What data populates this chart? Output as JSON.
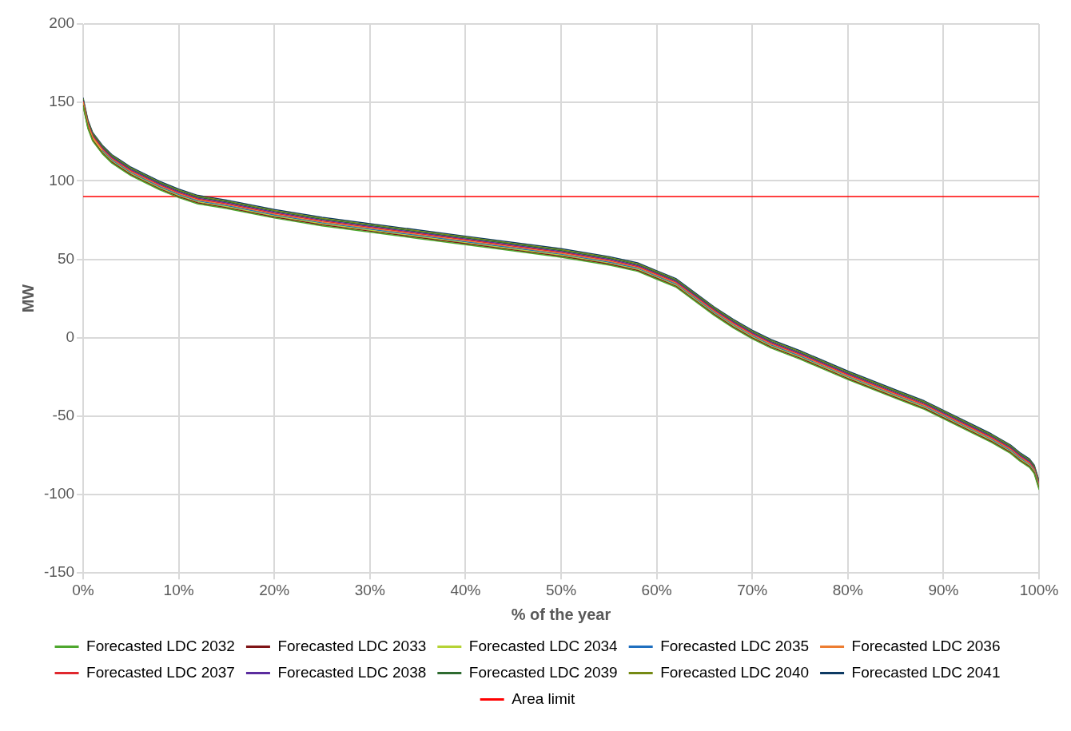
{
  "chart_data": {
    "type": "line",
    "xlabel": "% of the year",
    "ylabel": "MW",
    "x": [
      0,
      0.5,
      1,
      2,
      3,
      4,
      5,
      6,
      8,
      10,
      12,
      15,
      20,
      25,
      30,
      35,
      40,
      45,
      50,
      55,
      58,
      60,
      62,
      64,
      66,
      68,
      70,
      72,
      75,
      80,
      85,
      88,
      90,
      93,
      95,
      97,
      98,
      99,
      99.5,
      100
    ],
    "series": [
      {
        "name": "Forecasted LDC 2032",
        "color": "#4ea72e",
        "values": [
          147.3,
          133.3,
          125.3,
          117.3,
          111.3,
          107.3,
          103.3,
          100.3,
          94.3,
          89.3,
          85.3,
          82.3,
          76.3,
          71.3,
          67.3,
          63.3,
          59.3,
          55.3,
          51.3,
          46.3,
          42.3,
          37.3,
          32.3,
          23.3,
          14.3,
          6.3,
          -0.7,
          -6.7,
          -13.7,
          -26.7,
          -38.7,
          -45.7,
          -51.7,
          -60.7,
          -66.7,
          -73.7,
          -78.7,
          -82.7,
          -86.7,
          -96.7
        ]
      },
      {
        "name": "Forecasted LDC 2033",
        "color": "#7f1416",
        "values": [
          147.9,
          133.9,
          125.9,
          117.9,
          111.9,
          107.9,
          103.9,
          100.9,
          94.9,
          89.9,
          85.9,
          82.9,
          76.9,
          71.9,
          67.9,
          63.9,
          59.9,
          55.9,
          51.9,
          46.9,
          42.9,
          37.9,
          32.9,
          23.9,
          14.9,
          6.9,
          -0.1,
          -6.1,
          -13.1,
          -26.1,
          -38.1,
          -45.1,
          -51.1,
          -60.1,
          -66.1,
          -73.1,
          -78.1,
          -82.1,
          -86.1,
          -96.1
        ]
      },
      {
        "name": "Forecasted LDC 2034",
        "color": "#b5d335",
        "values": [
          148.5,
          134.5,
          126.5,
          118.5,
          112.5,
          108.5,
          104.5,
          101.5,
          95.5,
          90.5,
          86.5,
          83.5,
          77.5,
          72.5,
          68.5,
          64.5,
          60.5,
          56.5,
          52.5,
          47.5,
          43.5,
          38.5,
          33.5,
          24.5,
          15.5,
          7.5,
          0.5,
          -5.5,
          -12.5,
          -25.5,
          -37.5,
          -44.5,
          -50.5,
          -59.5,
          -65.5,
          -72.5,
          -77.5,
          -81.5,
          -85.5,
          -95.5
        ]
      },
      {
        "name": "Forecasted LDC 2035",
        "color": "#1f6fbf",
        "values": [
          null,
          null,
          null,
          119.1,
          113.1,
          109.1,
          105.1,
          102.1,
          96.1,
          91.1,
          87.1,
          84.1,
          78.1,
          73.1,
          69.1,
          65.1,
          61.1,
          57.1,
          53.1,
          48.1,
          44.1,
          39.1,
          34.1,
          25.1,
          16.1,
          8.1,
          1.1,
          -4.9,
          -11.9,
          -24.9,
          -36.9,
          -43.9,
          -49.9,
          -58.9,
          -64.9,
          -71.9,
          -76.9,
          -80.9,
          -84.9,
          -94.9
        ]
      },
      {
        "name": "Forecasted LDC 2036",
        "color": "#ed7d31",
        "values": [
          149.7,
          135.7,
          127.7,
          119.7,
          113.7,
          109.7,
          105.7,
          102.7,
          96.7,
          91.7,
          87.7,
          84.7,
          78.7,
          73.7,
          69.7,
          65.7,
          61.7,
          57.7,
          53.7,
          48.7,
          44.7,
          39.7,
          34.7,
          25.7,
          16.7,
          8.7,
          1.7,
          -4.3,
          -11.3,
          -24.3,
          -36.3,
          -43.3,
          -49.3,
          -58.3,
          -64.3,
          -71.3,
          -76.3,
          -80.3,
          -84.3,
          -94.3
        ]
      },
      {
        "name": "Forecasted LDC 2037",
        "color": "#e0282e",
        "values": [
          150.3,
          136.3,
          128.3,
          120.3,
          114.3,
          110.3,
          106.3,
          103.3,
          97.3,
          92.3,
          88.3,
          85.3,
          79.3,
          74.3,
          70.3,
          66.3,
          62.3,
          58.3,
          54.3,
          49.3,
          45.3,
          40.3,
          35.3,
          26.3,
          17.3,
          9.3,
          2.3,
          -3.7,
          -10.7,
          -23.7,
          -35.7,
          -42.7,
          -48.7,
          -57.7,
          -63.7,
          -70.7,
          -75.7,
          -79.7,
          -83.7,
          -93.7
        ]
      },
      {
        "name": "Forecasted LDC 2038",
        "color": "#5b2c9e",
        "values": [
          150.9,
          136.9,
          128.9,
          120.9,
          114.9,
          110.9,
          106.9,
          103.9,
          97.9,
          92.9,
          88.9,
          85.9,
          79.9,
          74.9,
          70.9,
          66.9,
          62.9,
          58.9,
          54.9,
          49.9,
          45.9,
          40.9,
          35.9,
          26.9,
          17.9,
          9.9,
          2.9,
          -3.1,
          -10.1,
          -23.1,
          -35.1,
          -42.1,
          -48.1,
          -57.1,
          -63.1,
          -70.1,
          -75.1,
          -79.1,
          -83.1,
          -93.1
        ]
      },
      {
        "name": "Forecasted LDC 2039",
        "color": "#2e6b30",
        "values": [
          151.5,
          137.5,
          129.5,
          121.5,
          115.5,
          111.5,
          107.5,
          104.5,
          98.5,
          93.5,
          89.5,
          86.5,
          80.5,
          75.5,
          71.5,
          67.5,
          63.5,
          59.5,
          55.5,
          50.5,
          46.5,
          41.5,
          36.5,
          27.5,
          18.5,
          10.5,
          3.5,
          -2.5,
          -9.5,
          -22.5,
          -34.5,
          -41.5,
          -47.5,
          -56.5,
          -62.5,
          -69.5,
          -74.5,
          -78.5,
          -82.5,
          -92.5
        ]
      },
      {
        "name": "Forecasted LDC 2040",
        "color": "#758a14",
        "values": [
          152.1,
          138.1,
          130.1,
          122.1,
          116.1,
          112.1,
          108.1,
          105.1,
          99.1,
          94.1,
          90.1,
          87.1,
          81.1,
          76.1,
          72.1,
          68.1,
          64.1,
          60.1,
          56.1,
          51.1,
          47.1,
          42.1,
          37.1,
          28.1,
          19.1,
          11.1,
          4.1,
          -1.9,
          -8.9,
          -21.9,
          -33.9,
          -40.9,
          -46.9,
          -55.9,
          -61.9,
          -68.9,
          -73.9,
          -77.9,
          -81.9,
          -91.9
        ]
      },
      {
        "name": "Forecasted LDC 2041",
        "color": "#0d3a63",
        "values": [
          152.7,
          138.7,
          130.7,
          122.7,
          116.7,
          112.7,
          108.7,
          105.7,
          99.7,
          94.7,
          90.7,
          87.7,
          81.7,
          76.7,
          72.7,
          68.7,
          64.7,
          60.7,
          56.7,
          51.7,
          47.7,
          42.7,
          37.7,
          28.7,
          19.7,
          11.7,
          4.7,
          -1.3,
          -8.3,
          -21.3,
          -33.3,
          -40.3,
          -46.3,
          -55.3,
          -61.3,
          -68.3,
          -73.3,
          -77.3,
          -81.3,
          -91.3
        ]
      },
      {
        "name": "Area limit",
        "color": "#ff0000",
        "x": [
          0,
          100
        ],
        "values": [
          90,
          90
        ]
      }
    ],
    "xlim": [
      0,
      100
    ],
    "xticks": [
      {
        "value": 0,
        "label": "0%"
      },
      {
        "value": 10,
        "label": "10%"
      },
      {
        "value": 20,
        "label": "20%"
      },
      {
        "value": 30,
        "label": "30%"
      },
      {
        "value": 40,
        "label": "40%"
      },
      {
        "value": 50,
        "label": "50%"
      },
      {
        "value": 60,
        "label": "60%"
      },
      {
        "value": 70,
        "label": "70%"
      },
      {
        "value": 80,
        "label": "80%"
      },
      {
        "value": 90,
        "label": "90%"
      },
      {
        "value": 100,
        "label": "100%"
      }
    ],
    "ylim": [
      -150,
      200
    ],
    "yticks": [
      -150,
      -100,
      -50,
      0,
      50,
      100,
      150,
      200
    ],
    "grid": true,
    "legend": "bottom",
    "marker": "none",
    "line_style": "solid"
  }
}
